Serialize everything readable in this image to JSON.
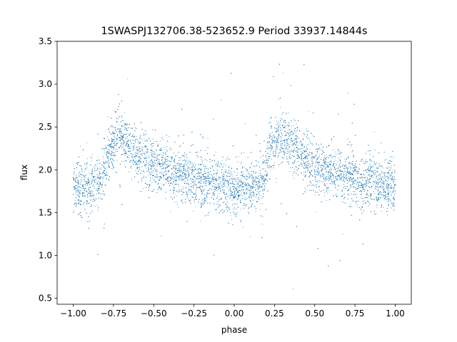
{
  "chart_data": {
    "type": "scatter",
    "title": "1SWASPJ132706.38-523652.9 Period 33937.14844s",
    "xlabel": "phase",
    "ylabel": "flux",
    "xlim": [
      -1.1,
      1.1
    ],
    "ylim": [
      0.43,
      3.5
    ],
    "grid": false,
    "legend": "none",
    "x_ticks": [
      -1.0,
      -0.75,
      -0.5,
      -0.25,
      0.0,
      0.25,
      0.5,
      0.75,
      1.0
    ],
    "x_tick_labels": [
      "−1.00",
      "−0.75",
      "−0.50",
      "−0.25",
      "0.00",
      "0.25",
      "0.50",
      "0.75",
      "1.00"
    ],
    "y_ticks": [
      0.5,
      1.0,
      1.5,
      2.0,
      2.5,
      3.0,
      3.5
    ],
    "y_tick_labels": [
      "0.5",
      "1.0",
      "1.5",
      "2.0",
      "2.5",
      "3.0",
      "3.5"
    ],
    "point_color": "#1f77b4",
    "series": [
      {
        "x_range": [
          -1.0,
          1.0
        ],
        "light_curve_profile": [
          {
            "phase": -1.0,
            "flux": 1.8
          },
          {
            "phase": -0.9,
            "flux": 1.78
          },
          {
            "phase": -0.82,
            "flux": 1.88
          },
          {
            "phase": -0.78,
            "flux": 2.2
          },
          {
            "phase": -0.72,
            "flux": 2.42
          },
          {
            "phase": -0.6,
            "flux": 2.2
          },
          {
            "phase": -0.5,
            "flux": 2.05
          },
          {
            "phase": -0.3,
            "flux": 1.92
          },
          {
            "phase": -0.1,
            "flux": 1.82
          },
          {
            "phase": 0.0,
            "flux": 1.78
          },
          {
            "phase": 0.1,
            "flux": 1.78
          },
          {
            "phase": 0.18,
            "flux": 1.88
          },
          {
            "phase": 0.22,
            "flux": 2.2
          },
          {
            "phase": 0.28,
            "flux": 2.42
          },
          {
            "phase": 0.4,
            "flux": 2.2
          },
          {
            "phase": 0.5,
            "flux": 2.05
          },
          {
            "phase": 0.7,
            "flux": 1.92
          },
          {
            "phase": 0.9,
            "flux": 1.82
          },
          {
            "phase": 1.0,
            "flux": 1.8
          }
        ],
        "scatter_sigma": 0.15
      }
    ]
  }
}
